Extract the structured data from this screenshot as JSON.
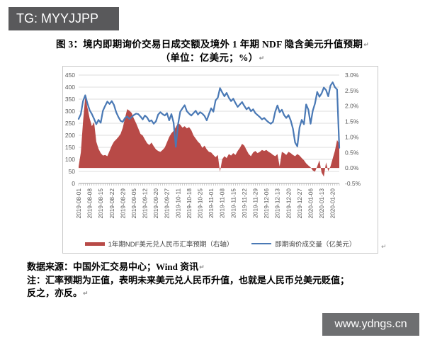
{
  "watermarks": {
    "telegram_badge": "TG: MYYJJPP",
    "website_badge": "www.ydngs.cn"
  },
  "document": {
    "title_line1": "图 3：境内即期询价交易日成交额及境外 1 年期 NDF 隐含美元升值预期",
    "title_line2": "（单位：亿美元；%）",
    "source_line": "数据来源：中国外汇交易中心；Wind 资讯",
    "note_line1": "注：汇率预期为正值，表明未来美元兑人民币升值，也就是人民币兑美元贬值；",
    "note_line2": "反之，亦反。",
    "paragraph_mark": "↵"
  },
  "chart_data": {
    "type": "combo",
    "subtype": "area+line, dual axis",
    "grid": "horizontal",
    "legend_position": "bottom-inside",
    "n_points": 119,
    "points_per_label": 5,
    "x_labels": [
      "2019-08-01",
      "2019-08-08",
      "2019-08-15",
      "2019-08-22",
      "2019-08-29",
      "2019-09-05",
      "2019-09-12",
      "2019-09-20",
      "2019-09-27",
      "2019-10-11",
      "2019-10-18",
      "2019-10-25",
      "2019-11-01",
      "2019-11-08",
      "2019-11-15",
      "2019-11-22",
      "2019-11-29",
      "2019-12-06",
      "2019-12-13",
      "2019-12-20",
      "2019-12-27",
      "2020-01-06",
      "2020-01-13",
      "2020-01-20"
    ],
    "left_axis": {
      "min": 0,
      "max": 450,
      "labels": [
        "450",
        "400",
        "350",
        "300",
        "250",
        "200",
        "150",
        "100",
        "50",
        "0"
      ]
    },
    "right_axis": {
      "min": -0.5,
      "max": 3.0,
      "labels": [
        "3.0%",
        "2.5%",
        "2.0%",
        "1.5%",
        "1.0%",
        "0.5%",
        "0.0%",
        "-0.5%"
      ]
    },
    "colors": {
      "gridline": "#dcdcdc",
      "axis_text": "#595959",
      "axis_line": "#a0a0a0"
    },
    "series": [
      {
        "name": "1年期NDF美元兑人民币汇率预期（右轴）",
        "type": "area",
        "axis": "right",
        "color": "#b84a47",
        "values": [
          0.05,
          0.5,
          1.5,
          2.3,
          1.95,
          1.6,
          1.35,
          1.48,
          0.85,
          0.62,
          0.48,
          0.4,
          0.42,
          0.38,
          0.55,
          0.72,
          0.85,
          0.92,
          1.0,
          1.1,
          1.3,
          1.62,
          1.9,
          1.85,
          1.78,
          1.6,
          1.45,
          1.28,
          1.1,
          1.05,
          0.92,
          0.8,
          0.74,
          0.82,
          0.7,
          0.6,
          0.55,
          0.52,
          0.58,
          0.66,
          0.83,
          1.0,
          1.12,
          1.2,
          1.32,
          1.45,
          1.4,
          1.3,
          1.35,
          1.28,
          1.32,
          1.22,
          1.05,
          0.95,
          0.85,
          0.78,
          0.65,
          0.72,
          0.6,
          0.52,
          0.5,
          0.42,
          0.35,
          0.42,
          -0.12,
          0.28,
          0.38,
          0.32,
          0.45,
          0.4,
          0.48,
          0.42,
          0.55,
          0.65,
          0.78,
          0.72,
          0.58,
          0.45,
          0.38,
          0.5,
          0.55,
          0.48,
          0.52,
          0.58,
          0.55,
          0.58,
          0.52,
          0.48,
          0.42,
          0.38,
          0.45,
          0.05,
          0.52,
          0.48,
          0.42,
          0.52,
          0.48,
          0.42,
          0.38,
          0.45,
          0.4,
          0.32,
          0.25,
          0.15,
          0.08,
          0.02,
          -0.08,
          -0.12,
          0.05,
          0.25,
          -0.15,
          -0.28,
          0.18,
          -0.1,
          0.05,
          0.3,
          0.55,
          0.9,
          0.78
        ]
      },
      {
        "name": "即期询价成交量（亿美元）",
        "type": "line",
        "axis": "left",
        "color": "#4a79b5",
        "values": [
          268,
          288,
          342,
          366,
          332,
          304,
          288,
          268,
          246,
          264,
          252,
          302,
          322,
          340,
          330,
          342,
          326,
          296,
          276,
          260,
          256,
          272,
          278,
          268,
          276,
          284,
          290,
          288,
          278,
          266,
          282,
          274,
          258,
          262,
          248,
          258,
          286,
          296,
          288,
          282,
          292,
          262,
          288,
          252,
          152,
          245,
          298,
          312,
          325,
          300,
          290,
          282,
          292,
          302,
          286,
          296,
          290,
          280,
          262,
          288,
          312,
          298,
          345,
          356,
          396,
          378,
          362,
          376,
          356,
          342,
          352,
          334,
          318,
          328,
          338,
          322,
          308,
          316,
          300,
          308,
          292,
          284,
          276,
          266,
          272,
          262,
          254,
          248,
          256,
          298,
          324,
          296,
          306,
          284,
          272,
          284,
          262,
          228,
          170,
          154,
          232,
          264,
          246,
          328,
          306,
          248,
          302,
          332,
          380,
          360,
          374,
          398,
          388,
          362,
          406,
          420,
          400,
          390,
          148
        ]
      }
    ]
  }
}
